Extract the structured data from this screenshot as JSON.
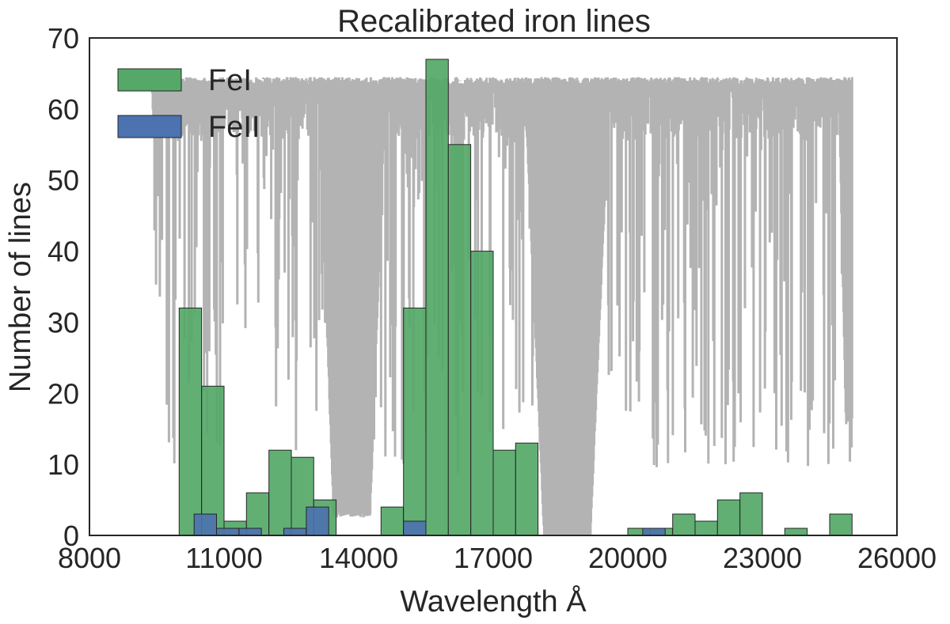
{
  "chart_data": {
    "type": "bar",
    "title": "Recalibrated iron lines",
    "xlabel": "Wavelength Å",
    "ylabel": "Number of lines",
    "xlim": [
      8000,
      26000
    ],
    "ylim": [
      0,
      70
    ],
    "xticks": [
      8000,
      11000,
      14000,
      17000,
      20000,
      23000,
      26000
    ],
    "yticks": [
      0,
      10,
      20,
      30,
      40,
      50,
      60,
      70
    ],
    "grid": false,
    "legend_position": "top-left",
    "bin_width": 500,
    "series": [
      {
        "name": "FeI",
        "color": "#55a868",
        "bins": [
          {
            "start": 10000,
            "value": 32
          },
          {
            "start": 10500,
            "value": 21
          },
          {
            "start": 11000,
            "value": 2
          },
          {
            "start": 11500,
            "value": 6
          },
          {
            "start": 12000,
            "value": 12
          },
          {
            "start": 12500,
            "value": 11
          },
          {
            "start": 13000,
            "value": 5
          },
          {
            "start": 14500,
            "value": 4
          },
          {
            "start": 15000,
            "value": 32
          },
          {
            "start": 15500,
            "value": 67
          },
          {
            "start": 16000,
            "value": 55
          },
          {
            "start": 16500,
            "value": 40
          },
          {
            "start": 17000,
            "value": 12
          },
          {
            "start": 17500,
            "value": 13
          },
          {
            "start": 20000,
            "value": 1
          },
          {
            "start": 20500,
            "value": 1
          },
          {
            "start": 21000,
            "value": 3
          },
          {
            "start": 21500,
            "value": 2
          },
          {
            "start": 22000,
            "value": 5
          },
          {
            "start": 22500,
            "value": 6
          },
          {
            "start": 23500,
            "value": 1
          },
          {
            "start": 24500,
            "value": 3
          }
        ]
      },
      {
        "name": "FeII",
        "color": "#4c72b0",
        "bins": [
          {
            "start": 10333,
            "value": 3
          },
          {
            "start": 10833,
            "value": 1
          },
          {
            "start": 11333,
            "value": 1
          },
          {
            "start": 12333,
            "value": 1
          },
          {
            "start": 12833,
            "value": 4
          },
          {
            "start": 15000,
            "value": 2
          },
          {
            "start": 20333,
            "value": 1
          }
        ]
      }
    ],
    "background_spectrum": {
      "color": "#b3b3b3",
      "x_range": [
        9400,
        25000
      ],
      "continuum": 64.5
    },
    "colors": {
      "overlap_dark": "#3a6e46",
      "axes": "#262626"
    }
  }
}
